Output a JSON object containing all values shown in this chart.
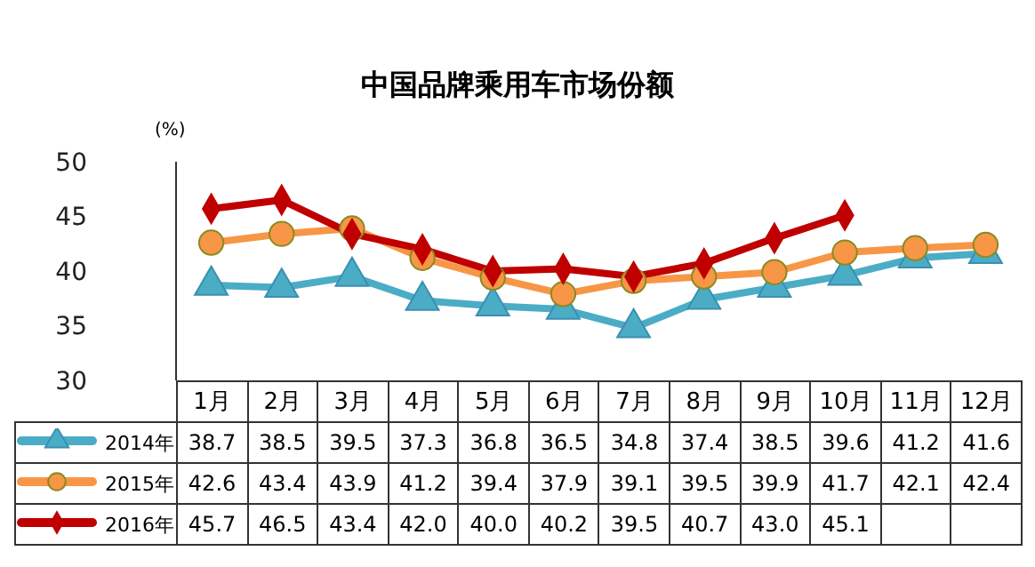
{
  "chart_data": {
    "type": "line",
    "title": "中国品牌乘用车市场份额",
    "ylabel": "(%)",
    "categories": [
      "1月",
      "2月",
      "3月",
      "4月",
      "5月",
      "6月",
      "7月",
      "8月",
      "9月",
      "10月",
      "11月",
      "12月"
    ],
    "series": [
      {
        "name": "2014年",
        "color": "#4bacc6",
        "marker": "triangle",
        "values": [
          38.7,
          38.5,
          39.5,
          37.3,
          36.8,
          36.5,
          34.8,
          37.4,
          38.5,
          39.6,
          41.2,
          41.6
        ],
        "value_labels": [
          "38.7",
          "38.5",
          "39.5",
          "37.3",
          "36.8",
          "36.5",
          "34.8",
          "37.4",
          "38.5",
          "39.6",
          "41.2",
          "41.6"
        ]
      },
      {
        "name": "2015年",
        "color": "#f79646",
        "marker": "circle",
        "values": [
          42.6,
          43.4,
          43.9,
          41.2,
          39.4,
          37.9,
          39.1,
          39.5,
          39.9,
          41.7,
          42.1,
          42.4
        ],
        "value_labels": [
          "42.6",
          "43.4",
          "43.9",
          "41.2",
          "39.4",
          "37.9",
          "39.1",
          "39.5",
          "39.9",
          "41.7",
          "42.1",
          "42.4"
        ]
      },
      {
        "name": "2016年",
        "color": "#c00000",
        "marker": "diamond",
        "values": [
          45.7,
          46.5,
          43.4,
          42.0,
          40.0,
          40.2,
          39.5,
          40.7,
          43.0,
          45.1,
          null,
          null
        ],
        "value_labels": [
          "45.7",
          "46.5",
          "43.4",
          "42.0",
          "40.0",
          "40.2",
          "39.5",
          "40.7",
          "43.0",
          "45.1",
          null,
          null
        ]
      }
    ],
    "ylim": [
      30,
      50
    ],
    "yticks": [
      30,
      35,
      40,
      45,
      50
    ],
    "grid": false,
    "legend": "bottom"
  }
}
